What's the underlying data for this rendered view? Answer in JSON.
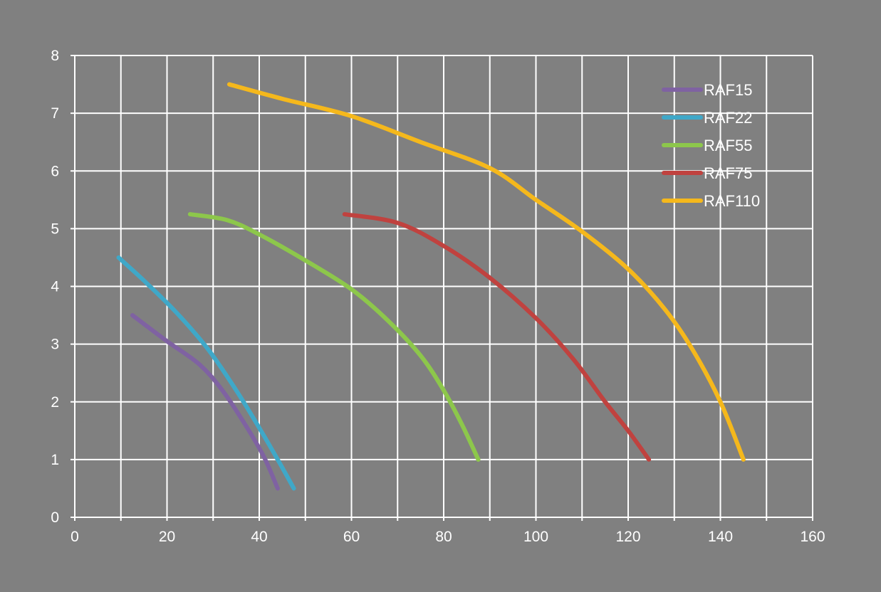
{
  "chart_data": {
    "type": "line",
    "title": "",
    "xlabel": "",
    "ylabel": "",
    "xlim": [
      0,
      160
    ],
    "ylim": [
      0,
      8
    ],
    "xticks": [
      "0",
      "20",
      "40",
      "60",
      "80",
      "100",
      "120",
      "140",
      "160"
    ],
    "yticks": [
      "0",
      "1",
      "2",
      "3",
      "4",
      "5",
      "6",
      "7",
      "8"
    ],
    "grid": true,
    "legend_position": "top-right",
    "background_color": "#808080",
    "grid_color": "#ffffff",
    "text_color": "#ffffff",
    "series": [
      {
        "name": "RAF15",
        "color": "#7f62a2",
        "points": [
          [
            12.5,
            3.5
          ],
          [
            20,
            3.05
          ],
          [
            27,
            2.65
          ],
          [
            32,
            2.2
          ],
          [
            37,
            1.6
          ],
          [
            41,
            1.05
          ],
          [
            44,
            0.5
          ]
        ]
      },
      {
        "name": "RAF22",
        "color": "#3fa8c8",
        "points": [
          [
            9.5,
            4.5
          ],
          [
            15,
            4.1
          ],
          [
            22,
            3.55
          ],
          [
            29,
            2.9
          ],
          [
            35,
            2.2
          ],
          [
            40,
            1.55
          ],
          [
            44,
            1.0
          ],
          [
            47.5,
            0.5
          ]
        ]
      },
      {
        "name": "RAF55",
        "color": "#8dc74b",
        "points": [
          [
            25,
            5.25
          ],
          [
            33,
            5.15
          ],
          [
            40,
            4.9
          ],
          [
            50,
            4.45
          ],
          [
            60,
            3.95
          ],
          [
            68,
            3.4
          ],
          [
            75,
            2.8
          ],
          [
            80,
            2.2
          ],
          [
            84,
            1.6
          ],
          [
            87.5,
            1.0
          ]
        ]
      },
      {
        "name": "RAF75",
        "color": "#c0423f",
        "points": [
          [
            58.5,
            5.25
          ],
          [
            70,
            5.1
          ],
          [
            80,
            4.7
          ],
          [
            90,
            4.15
          ],
          [
            100,
            3.45
          ],
          [
            108,
            2.75
          ],
          [
            115,
            2.0
          ],
          [
            120,
            1.5
          ],
          [
            124.5,
            1.0
          ]
        ]
      },
      {
        "name": "RAF110",
        "color": "#f5b81c",
        "points": [
          [
            33.5,
            7.5
          ],
          [
            45,
            7.25
          ],
          [
            60,
            6.95
          ],
          [
            75,
            6.5
          ],
          [
            90,
            6.05
          ],
          [
            100,
            5.5
          ],
          [
            110,
            4.95
          ],
          [
            120,
            4.3
          ],
          [
            128,
            3.6
          ],
          [
            134,
            2.9
          ],
          [
            140,
            2.0
          ],
          [
            145,
            1.0
          ]
        ]
      }
    ]
  }
}
